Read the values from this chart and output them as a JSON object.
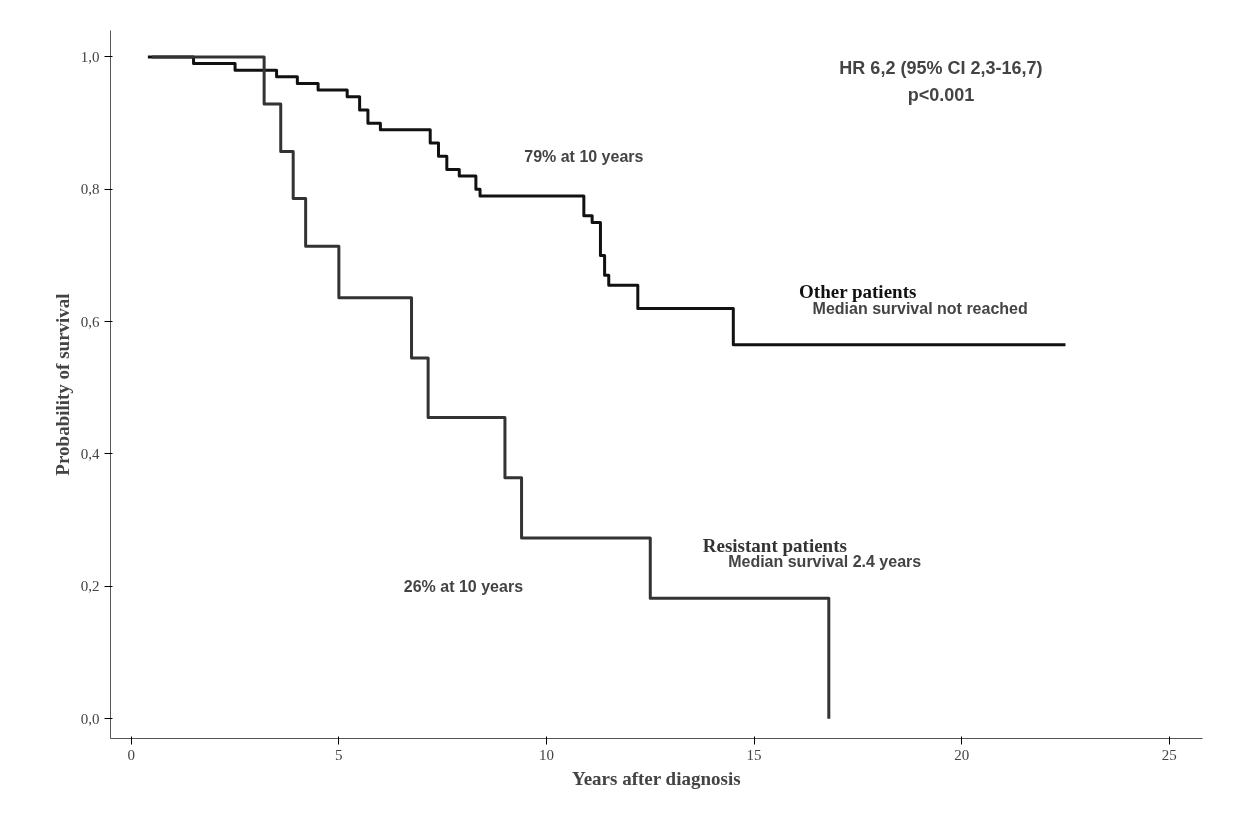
{
  "chart_data": {
    "type": "step",
    "xlabel": "Years after diagnosis",
    "ylabel": "Probability of survival",
    "xlim": [
      -0.5,
      25.8
    ],
    "ylim": [
      -0.03,
      1.04
    ],
    "xticks": [
      0,
      5,
      10,
      15,
      20,
      25
    ],
    "yticks": [
      {
        "value": 0,
        "label": "0,0"
      },
      {
        "value": 0.2,
        "label": "0,2"
      },
      {
        "value": 0.4,
        "label": "0,4"
      },
      {
        "value": 0.6,
        "label": "0,6"
      },
      {
        "value": 0.8,
        "label": "0,8"
      },
      {
        "value": 1,
        "label": "1,0"
      }
    ],
    "grid": false,
    "series": [
      {
        "name": "Other patients",
        "color": "#111111",
        "x": [
          0.4,
          1.5,
          2.5,
          3.5,
          4.0,
          4.5,
          5.2,
          5.5,
          5.7,
          6.0,
          7.2,
          7.4,
          7.6,
          7.9,
          8.3,
          8.4,
          10.9,
          11.1,
          11.3,
          11.4,
          11.5,
          12.2,
          14.5,
          22.5
        ],
        "values": [
          1.0,
          0.99,
          0.98,
          0.97,
          0.96,
          0.95,
          0.94,
          0.92,
          0.9,
          0.89,
          0.87,
          0.85,
          0.83,
          0.82,
          0.8,
          0.79,
          0.76,
          0.75,
          0.7,
          0.67,
          0.655,
          0.62,
          0.565,
          0.565
        ]
      },
      {
        "name": "Resistant patients",
        "color": "#333333",
        "x": [
          0.5,
          3.2,
          3.6,
          3.9,
          4.2,
          5.0,
          6.75,
          7.15,
          9.0,
          9.4,
          12.5,
          16.8
        ],
        "values": [
          1.0,
          0.929,
          0.857,
          0.786,
          0.714,
          0.636,
          0.545,
          0.455,
          0.364,
          0.273,
          0.182,
          0.0
        ]
      }
    ],
    "annotations": [
      "HR 6,2 (95% CI 2,3-16,7)",
      "p<0.001",
      "79% at 10 years",
      "Median survival not reached",
      "26% at 10 years",
      "Median survival 2.4 years"
    ]
  }
}
